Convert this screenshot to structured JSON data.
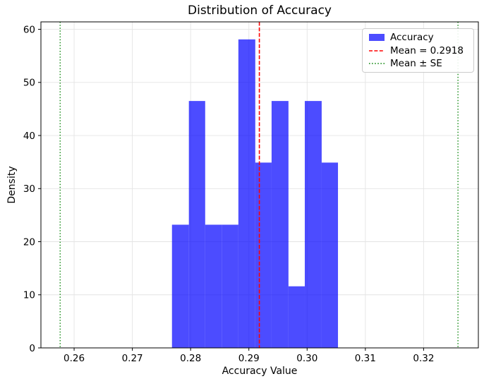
{
  "chart_data": {
    "type": "bar",
    "title": "Distribution of Accuracy",
    "xlabel": "Accuracy Value",
    "ylabel": "Density",
    "series_name": "Accuracy",
    "bin_edges": [
      0.2768,
      0.2797,
      0.2825,
      0.2854,
      0.2882,
      0.2911,
      0.2939,
      0.2968,
      0.2996,
      0.3025,
      0.3053
    ],
    "densities": [
      23.2,
      46.5,
      23.2,
      23.2,
      58.1,
      34.9,
      46.5,
      11.6,
      46.5,
      34.9
    ],
    "mean": 0.2918,
    "se": 0.0341,
    "mean_line_x": 0.2918,
    "se_lines_x": [
      0.2576,
      0.3259
    ],
    "xlim": [
      0.2543,
      0.3294
    ],
    "ylim": [
      0,
      61.4
    ],
    "xticks": [
      0.26,
      0.27,
      0.28,
      0.29,
      0.3,
      0.31,
      0.32
    ],
    "xtick_labels": [
      "0.26",
      "0.27",
      "0.28",
      "0.29",
      "0.30",
      "0.31",
      "0.32"
    ],
    "yticks": [
      0,
      10,
      20,
      30,
      40,
      50,
      60
    ],
    "ytick_labels": [
      "0",
      "10",
      "20",
      "30",
      "40",
      "50",
      "60"
    ],
    "grid": true,
    "legend_position": "upper-right",
    "colors": {
      "bar_fill": "#0000ff",
      "bar_alpha": 0.7,
      "mean_line": "#ff0000",
      "se_line": "#008000",
      "grid_line": "#e4e4e4",
      "spine": "#000000",
      "text": "#000000"
    },
    "legend": {
      "entries": [
        {
          "label": "Accuracy",
          "style": "patch",
          "color": "#0000ff",
          "alpha": 0.7
        },
        {
          "label": "Mean = 0.2918",
          "style": "dashed",
          "color": "#ff0000"
        },
        {
          "label": "Mean ± SE",
          "style": "dotted",
          "color": "#008000"
        }
      ]
    }
  }
}
